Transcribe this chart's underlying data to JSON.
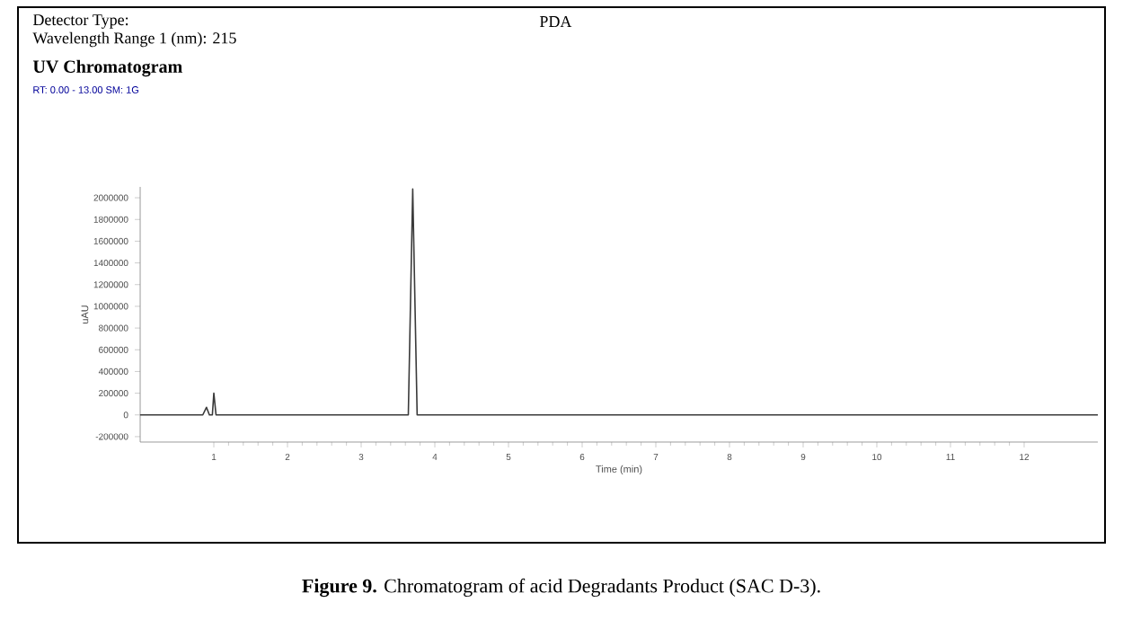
{
  "chart_data": {
    "type": "line",
    "title": "UV Chromatogram",
    "subtitle": "RT: 0.00 - 13.00  SM: 1G",
    "xlabel": "Time (min)",
    "ylabel": "uAU",
    "annotations": [
      "Detector Type:",
      "PDA",
      "Wavelength Range 1 (nm):  215",
      "**Figure 9.** Chromatogram of acid Degradants Product (SAC D-3)."
    ],
    "series": [
      {
        "color": "#3a3a3a",
        "x": [
          0,
          0.85,
          0.9,
          0.94,
          0.98,
          1.0,
          1.03,
          3.64,
          3.7,
          3.76,
          13
        ],
        "values": [
          0,
          0,
          70000,
          0,
          0,
          200000,
          0,
          0,
          2080000,
          0,
          0
        ]
      }
    ],
    "xlim": [
      0,
      13
    ],
    "xticks": [
      1,
      2,
      3,
      4,
      5,
      6,
      7,
      8,
      9,
      10,
      11,
      12
    ],
    "ylim": [
      -250000,
      2100000
    ],
    "yticks": [
      -200000,
      0,
      200000,
      400000,
      600000,
      800000,
      1000000,
      1200000,
      1400000,
      1600000,
      1800000,
      2000000
    ]
  }
}
